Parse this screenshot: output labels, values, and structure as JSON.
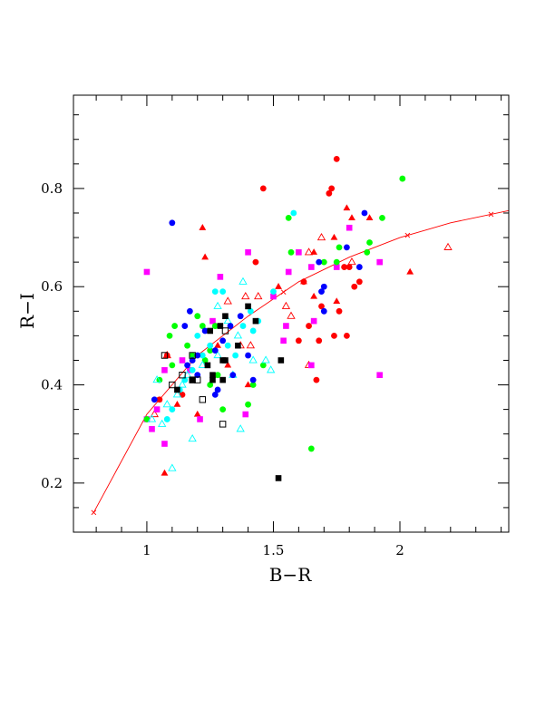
{
  "chart_data": {
    "type": "scatter",
    "title": "",
    "xlabel": "B−R",
    "ylabel": "R−I",
    "xlim": [
      0.71,
      2.43
    ],
    "ylim": [
      0.1,
      0.99
    ],
    "grid": false,
    "legend": "none",
    "x_major_ticks": [
      1,
      1.5,
      2
    ],
    "x_tick_labels": [
      "1",
      "1.5",
      "2"
    ],
    "x_minor_step": 0.1,
    "y_major_ticks": [
      0.2,
      0.4,
      0.6,
      0.8
    ],
    "y_tick_labels": [
      "0.2",
      "0.4",
      "0.6",
      "0.8"
    ],
    "y_minor_step": 0.05,
    "series": [
      {
        "marker": "filled-circle",
        "color": "#ff0000",
        "points": [
          [
            1.46,
            0.8
          ],
          [
            1.75,
            0.86
          ],
          [
            1.72,
            0.79
          ],
          [
            1.73,
            0.8
          ],
          [
            1.43,
            0.65
          ],
          [
            1.62,
            0.61
          ],
          [
            1.64,
            0.52
          ],
          [
            1.6,
            0.49
          ],
          [
            1.68,
            0.49
          ],
          [
            1.69,
            0.56
          ],
          [
            1.76,
            0.55
          ],
          [
            1.74,
            0.5
          ],
          [
            1.79,
            0.5
          ],
          [
            1.82,
            0.6
          ],
          [
            1.84,
            0.61
          ],
          [
            1.67,
            0.41
          ],
          [
            1.78,
            0.64
          ],
          [
            1.8,
            0.64
          ],
          [
            1.08,
            0.46
          ],
          [
            1.05,
            0.37
          ],
          [
            1.14,
            0.38
          ]
        ]
      },
      {
        "marker": "filled-triangle",
        "color": "#ff0000",
        "points": [
          [
            1.22,
            0.72
          ],
          [
            1.23,
            0.66
          ],
          [
            1.79,
            0.76
          ],
          [
            1.81,
            0.74
          ],
          [
            1.88,
            0.74
          ],
          [
            1.74,
            0.7
          ],
          [
            1.66,
            0.67
          ],
          [
            1.62,
            0.61
          ],
          [
            1.52,
            0.6
          ],
          [
            1.66,
            0.58
          ],
          [
            1.75,
            0.57
          ],
          [
            2.04,
            0.63
          ],
          [
            1.07,
            0.22
          ],
          [
            1.12,
            0.36
          ],
          [
            1.2,
            0.34
          ],
          [
            1.4,
            0.4
          ],
          [
            1.28,
            0.48
          ],
          [
            1.32,
            0.44
          ]
        ]
      },
      {
        "marker": "open-triangle",
        "color": "#ff0000",
        "points": [
          [
            1.69,
            0.7
          ],
          [
            1.64,
            0.67
          ],
          [
            1.81,
            0.65
          ],
          [
            2.19,
            0.68
          ],
          [
            1.44,
            0.58
          ],
          [
            1.39,
            0.58
          ],
          [
            1.32,
            0.57
          ],
          [
            1.55,
            0.56
          ],
          [
            1.57,
            0.54
          ],
          [
            1.64,
            0.44
          ],
          [
            1.08,
            0.46
          ],
          [
            1.03,
            0.34
          ],
          [
            1.37,
            0.48
          ],
          [
            1.41,
            0.48
          ]
        ]
      },
      {
        "marker": "filled-square",
        "color": "#ff00ff",
        "points": [
          [
            1.0,
            0.63
          ],
          [
            1.29,
            0.62
          ],
          [
            1.4,
            0.67
          ],
          [
            1.6,
            0.67
          ],
          [
            1.8,
            0.72
          ],
          [
            1.56,
            0.63
          ],
          [
            1.65,
            0.64
          ],
          [
            1.75,
            0.64
          ],
          [
            1.92,
            0.65
          ],
          [
            1.5,
            0.58
          ],
          [
            1.55,
            0.52
          ],
          [
            1.54,
            0.49
          ],
          [
            1.66,
            0.53
          ],
          [
            1.92,
            0.42
          ],
          [
            1.65,
            0.44
          ],
          [
            1.07,
            0.28
          ],
          [
            1.02,
            0.31
          ],
          [
            1.04,
            0.35
          ],
          [
            1.0,
            0.33
          ],
          [
            1.39,
            0.34
          ],
          [
            1.21,
            0.33
          ],
          [
            1.07,
            0.43
          ],
          [
            1.14,
            0.45
          ],
          [
            1.17,
            0.43
          ],
          [
            1.26,
            0.53
          ]
        ]
      },
      {
        "marker": "filled-circle",
        "color": "#00ff00",
        "points": [
          [
            2.01,
            0.82
          ],
          [
            1.93,
            0.74
          ],
          [
            1.56,
            0.74
          ],
          [
            1.57,
            0.67
          ],
          [
            1.76,
            0.68
          ],
          [
            1.87,
            0.67
          ],
          [
            1.88,
            0.69
          ],
          [
            1.7,
            0.65
          ],
          [
            1.75,
            0.65
          ],
          [
            1.65,
            0.27
          ],
          [
            1.2,
            0.54
          ],
          [
            1.22,
            0.52
          ],
          [
            1.27,
            0.52
          ],
          [
            1.25,
            0.47
          ],
          [
            1.23,
            0.45
          ],
          [
            1.25,
            0.4
          ],
          [
            1.28,
            0.42
          ],
          [
            1.3,
            0.35
          ],
          [
            1.4,
            0.36
          ],
          [
            1.42,
            0.4
          ],
          [
            1.09,
            0.5
          ],
          [
            1.11,
            0.52
          ],
          [
            1.16,
            0.48
          ],
          [
            1.18,
            0.46
          ],
          [
            1.0,
            0.33
          ],
          [
            1.05,
            0.41
          ],
          [
            1.1,
            0.44
          ],
          [
            1.46,
            0.44
          ]
        ]
      },
      {
        "marker": "filled-circle",
        "color": "#00ffff",
        "points": [
          [
            1.58,
            0.75
          ],
          [
            1.5,
            0.59
          ],
          [
            1.27,
            0.59
          ],
          [
            1.3,
            0.59
          ],
          [
            1.38,
            0.52
          ],
          [
            1.41,
            0.55
          ],
          [
            1.44,
            0.53
          ],
          [
            1.42,
            0.51
          ],
          [
            1.2,
            0.5
          ],
          [
            1.25,
            0.48
          ],
          [
            1.22,
            0.46
          ],
          [
            1.18,
            0.43
          ],
          [
            1.32,
            0.48
          ],
          [
            1.35,
            0.46
          ],
          [
            1.1,
            0.35
          ],
          [
            1.13,
            0.39
          ],
          [
            1.15,
            0.41
          ],
          [
            1.08,
            0.33
          ]
        ]
      },
      {
        "marker": "open-triangle",
        "color": "#00ffff",
        "points": [
          [
            1.38,
            0.61
          ],
          [
            1.28,
            0.56
          ],
          [
            1.32,
            0.53
          ],
          [
            1.36,
            0.5
          ],
          [
            1.42,
            0.45
          ],
          [
            1.47,
            0.45
          ],
          [
            1.49,
            0.43
          ],
          [
            1.37,
            0.31
          ],
          [
            1.18,
            0.29
          ],
          [
            1.1,
            0.23
          ],
          [
            1.06,
            0.32
          ],
          [
            1.08,
            0.36
          ],
          [
            1.12,
            0.38
          ],
          [
            1.14,
            0.4
          ],
          [
            1.16,
            0.42
          ],
          [
            1.04,
            0.41
          ],
          [
            1.22,
            0.44
          ],
          [
            1.28,
            0.46
          ],
          [
            1.34,
            0.42
          ],
          [
            1.02,
            0.33
          ]
        ]
      },
      {
        "marker": "filled-circle",
        "color": "#0000ff",
        "points": [
          [
            1.1,
            0.73
          ],
          [
            1.86,
            0.75
          ],
          [
            1.79,
            0.68
          ],
          [
            1.7,
            0.6
          ],
          [
            1.69,
            0.59
          ],
          [
            1.7,
            0.55
          ],
          [
            1.84,
            0.64
          ],
          [
            1.68,
            0.65
          ],
          [
            1.17,
            0.55
          ],
          [
            1.15,
            0.52
          ],
          [
            1.23,
            0.51
          ],
          [
            1.33,
            0.52
          ],
          [
            1.37,
            0.54
          ],
          [
            1.3,
            0.49
          ],
          [
            1.27,
            0.47
          ],
          [
            1.2,
            0.46
          ],
          [
            1.18,
            0.45
          ],
          [
            1.16,
            0.44
          ],
          [
            1.2,
            0.42
          ],
          [
            1.28,
            0.39
          ],
          [
            1.27,
            0.38
          ],
          [
            1.34,
            0.42
          ],
          [
            1.4,
            0.46
          ],
          [
            1.42,
            0.41
          ],
          [
            1.03,
            0.37
          ]
        ]
      },
      {
        "marker": "filled-square",
        "color": "#000000",
        "points": [
          [
            1.29,
            0.52
          ],
          [
            1.31,
            0.54
          ],
          [
            1.4,
            0.56
          ],
          [
            1.43,
            0.53
          ],
          [
            1.31,
            0.45
          ],
          [
            1.3,
            0.45
          ],
          [
            1.3,
            0.41
          ],
          [
            1.26,
            0.41
          ],
          [
            1.26,
            0.42
          ],
          [
            1.24,
            0.44
          ],
          [
            1.36,
            0.48
          ],
          [
            1.53,
            0.45
          ],
          [
            1.52,
            0.21
          ],
          [
            1.12,
            0.39
          ],
          [
            1.18,
            0.41
          ],
          [
            1.25,
            0.51
          ]
        ]
      },
      {
        "marker": "open-square",
        "color": "#000000",
        "points": [
          [
            1.07,
            0.46
          ],
          [
            1.1,
            0.4
          ],
          [
            1.18,
            0.46
          ],
          [
            1.18,
            0.41
          ],
          [
            1.2,
            0.41
          ],
          [
            1.22,
            0.37
          ],
          [
            1.3,
            0.32
          ],
          [
            1.31,
            0.51
          ],
          [
            1.14,
            0.42
          ]
        ]
      }
    ],
    "curve": {
      "color": "#ff0000",
      "x": [
        0.79,
        1.0,
        1.2,
        1.4,
        1.6,
        1.8,
        2.0,
        2.2,
        2.43
      ],
      "y": [
        0.14,
        0.34,
        0.46,
        0.54,
        0.61,
        0.66,
        0.7,
        0.73,
        0.755
      ],
      "cross_markers_x": [
        0.79,
        1.05,
        1.54,
        2.03,
        2.36
      ]
    }
  }
}
